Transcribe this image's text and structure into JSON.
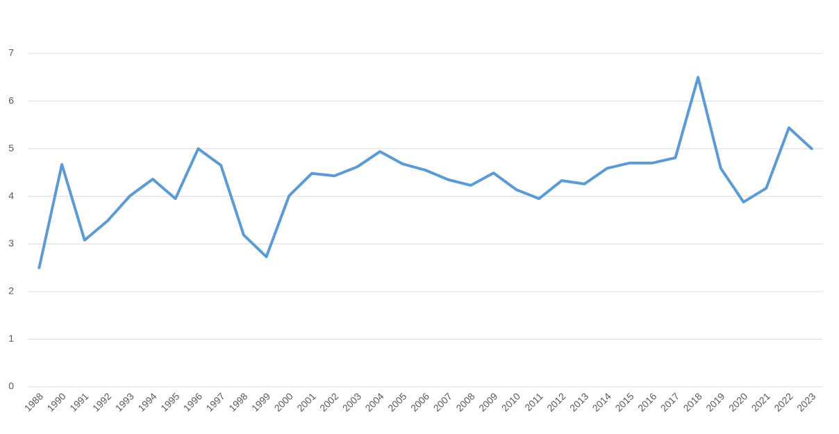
{
  "chart_data": {
    "type": "line",
    "categories": [
      "1988",
      "1990",
      "1991",
      "1992",
      "1993",
      "1994",
      "1995",
      "1996",
      "1997",
      "1998",
      "1999",
      "2000",
      "2001",
      "2002",
      "2003",
      "2004",
      "2005",
      "2006",
      "2007",
      "2008",
      "2009",
      "2010",
      "2011",
      "2012",
      "2013",
      "2014",
      "2015",
      "2016",
      "2017",
      "2018",
      "2019",
      "2020",
      "2021",
      "2022",
      "2023"
    ],
    "values": [
      2.5,
      4.67,
      3.08,
      3.48,
      4.01,
      4.36,
      3.95,
      5.0,
      4.65,
      3.19,
      2.73,
      4.01,
      4.48,
      4.43,
      4.62,
      4.94,
      4.68,
      4.55,
      4.35,
      4.23,
      4.49,
      4.14,
      3.95,
      4.33,
      4.26,
      4.59,
      4.7,
      4.7,
      4.81,
      6.5,
      4.59,
      3.88,
      4.17,
      5.44,
      5.0
    ],
    "color": "#5b9bd5",
    "ylim": [
      0,
      7
    ],
    "yticks": [
      0,
      1,
      2,
      3,
      4,
      5,
      6,
      7
    ],
    "grid": true
  }
}
